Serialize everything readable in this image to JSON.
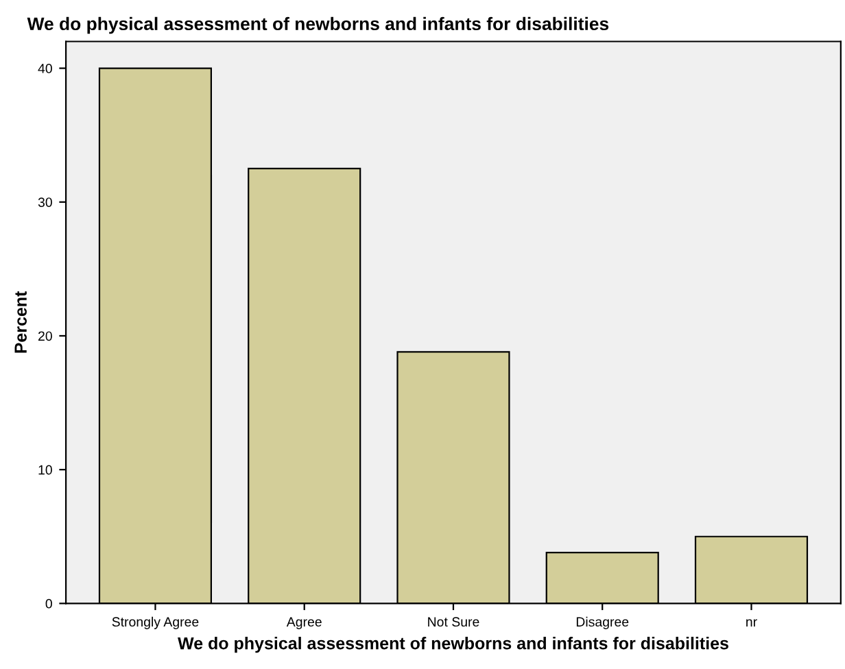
{
  "chart_data": {
    "type": "bar",
    "title": "We do physical assessment of newborns and infants for disabilities",
    "xlabel": "We do physical assessment of newborns and infants for disabilities",
    "ylabel": "Percent",
    "categories": [
      "Strongly Agree",
      "Agree",
      "Not Sure",
      "Disagree",
      "nr"
    ],
    "values": [
      40,
      32.5,
      18.8,
      3.8,
      5
    ],
    "color": "#d3ce99",
    "ylim": [
      0,
      42
    ],
    "yticks": [
      0,
      10,
      20,
      30,
      40
    ],
    "grid": false,
    "legend": false
  }
}
